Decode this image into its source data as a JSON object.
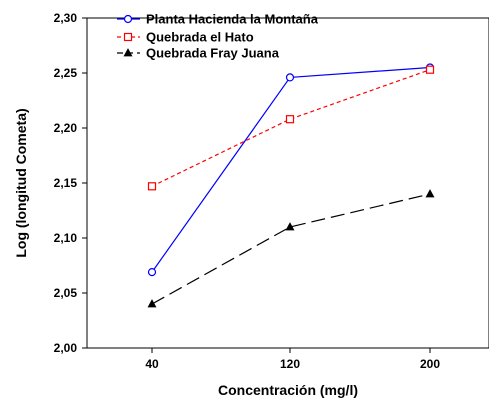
{
  "chart_data": {
    "type": "line",
    "x": [
      "40",
      "120",
      "200"
    ],
    "xlabel": "Concentración (mg/l)",
    "ylabel": "Log (longitud Cometa)",
    "ylim": [
      2.0,
      2.3
    ],
    "yticks": [
      "2,00",
      "2,05",
      "2,10",
      "2,15",
      "2,20",
      "2,25",
      "2,30"
    ],
    "grid": false,
    "legend_position": "top-left",
    "series": [
      {
        "name": "Planta Hacienda la Montaña",
        "values": [
          2.069,
          2.246,
          2.255
        ],
        "color": "#0000ff",
        "line_style": "solid",
        "marker": "circle-open"
      },
      {
        "name": "Quebrada el Hato",
        "values": [
          2.147,
          2.208,
          2.253
        ],
        "color": "#ff0000",
        "line_style": "dashed",
        "marker": "square-open"
      },
      {
        "name": "Quebrada Fray Juana",
        "values": [
          2.04,
          2.11,
          2.14
        ],
        "color": "#000000",
        "line_style": "long-dash",
        "marker": "triangle-filled"
      }
    ]
  }
}
